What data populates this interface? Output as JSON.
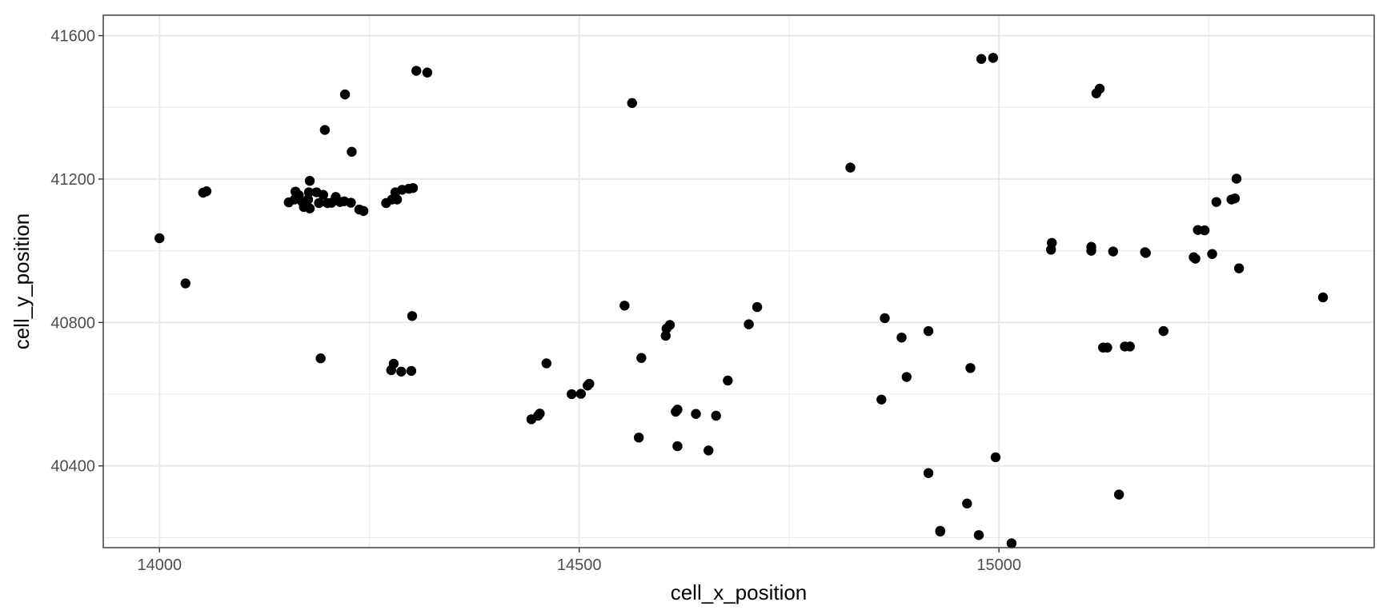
{
  "chart_data": {
    "type": "scatter",
    "title": "",
    "xlabel": "cell_x_position",
    "ylabel": "cell_y_position",
    "xlim": [
      13933,
      15447
    ],
    "ylim": [
      40172,
      41657
    ],
    "x_ticks": [
      14000,
      14500,
      15000
    ],
    "x_minor_ticks": [
      14250,
      14750,
      15250
    ],
    "y_ticks": [
      40400,
      40800,
      41200,
      41600
    ],
    "y_minor_ticks": [
      40200,
      40600,
      41000,
      41400
    ],
    "grid": true,
    "legend": "none",
    "colors": {
      "point": "#000000",
      "grid": "#ebebeb",
      "border": "#333333",
      "background": "#ffffff"
    },
    "series": [
      {
        "points": [
          [
            14000,
            41035
          ],
          [
            14031,
            40909
          ],
          [
            14052,
            41162
          ],
          [
            14056,
            41166
          ],
          [
            14154,
            41135
          ],
          [
            14161,
            41143
          ],
          [
            14162,
            41165
          ],
          [
            14166,
            41155
          ],
          [
            14170,
            41137
          ],
          [
            14172,
            41122
          ],
          [
            14177,
            41143
          ],
          [
            14178,
            41163
          ],
          [
            14179,
            41195
          ],
          [
            14179,
            41118
          ],
          [
            14187,
            41163
          ],
          [
            14190,
            41133
          ],
          [
            14195,
            41156
          ],
          [
            14200,
            41133
          ],
          [
            14205,
            41134
          ],
          [
            14210,
            41150
          ],
          [
            14215,
            41136
          ],
          [
            14220,
            41138
          ],
          [
            14228,
            41134
          ],
          [
            14238,
            41115
          ],
          [
            14243,
            41111
          ],
          [
            14270,
            41133
          ],
          [
            14277,
            41143
          ],
          [
            14283,
            41143
          ],
          [
            14281,
            41163
          ],
          [
            14289,
            41170
          ],
          [
            14297,
            41173
          ],
          [
            14302,
            41175
          ],
          [
            14221,
            41436
          ],
          [
            14197,
            41337
          ],
          [
            14229,
            41276
          ],
          [
            14306,
            41502
          ],
          [
            14319,
            41497
          ],
          [
            14192,
            40700
          ],
          [
            14276,
            40667
          ],
          [
            14279,
            40685
          ],
          [
            14288,
            40663
          ],
          [
            14300,
            40665
          ],
          [
            14301,
            40818
          ],
          [
            14443,
            40530
          ],
          [
            14451,
            40540
          ],
          [
            14453,
            40546
          ],
          [
            14461,
            40686
          ],
          [
            14491,
            40600
          ],
          [
            14502,
            40601
          ],
          [
            14510,
            40624
          ],
          [
            14512,
            40629
          ],
          [
            14554,
            40847
          ],
          [
            14563,
            41412
          ],
          [
            14571,
            40479
          ],
          [
            14574,
            40701
          ],
          [
            14603,
            40763
          ],
          [
            14604,
            40783
          ],
          [
            14608,
            40793
          ],
          [
            14615,
            40551
          ],
          [
            14617,
            40557
          ],
          [
            14617,
            40455
          ],
          [
            14639,
            40545
          ],
          [
            14654,
            40443
          ],
          [
            14663,
            40540
          ],
          [
            14677,
            40638
          ],
          [
            14702,
            40795
          ],
          [
            14712,
            40843
          ],
          [
            14823,
            41232
          ],
          [
            14860,
            40585
          ],
          [
            14864,
            40812
          ],
          [
            14884,
            40758
          ],
          [
            14890,
            40648
          ],
          [
            14916,
            40776
          ],
          [
            14916,
            40380
          ],
          [
            14930,
            40219
          ],
          [
            14930,
            40217
          ],
          [
            14962,
            40295
          ],
          [
            14966,
            40673
          ],
          [
            14976,
            40207
          ],
          [
            14979,
            41535
          ],
          [
            14993,
            41538
          ],
          [
            14996,
            40424
          ],
          [
            15015,
            40184
          ],
          [
            15062,
            41003
          ],
          [
            15063,
            41022
          ],
          [
            15110,
            41000
          ],
          [
            15110,
            41011
          ],
          [
            15116,
            41439
          ],
          [
            15120,
            41452
          ],
          [
            15124,
            40730
          ],
          [
            15129,
            40730
          ],
          [
            15136,
            40998
          ],
          [
            15150,
            40733
          ],
          [
            15156,
            40733
          ],
          [
            15174,
            40996
          ],
          [
            15175,
            40994
          ],
          [
            15196,
            40776
          ],
          [
            15232,
            40982
          ],
          [
            15234,
            40978
          ],
          [
            15237,
            41058
          ],
          [
            15245,
            41057
          ],
          [
            15254,
            40991
          ],
          [
            15259,
            41136
          ],
          [
            15277,
            41143
          ],
          [
            15281,
            41146
          ],
          [
            15283,
            41201
          ],
          [
            15286,
            40951
          ],
          [
            15386,
            40870
          ],
          [
            15143,
            40320
          ]
        ]
      }
    ]
  }
}
